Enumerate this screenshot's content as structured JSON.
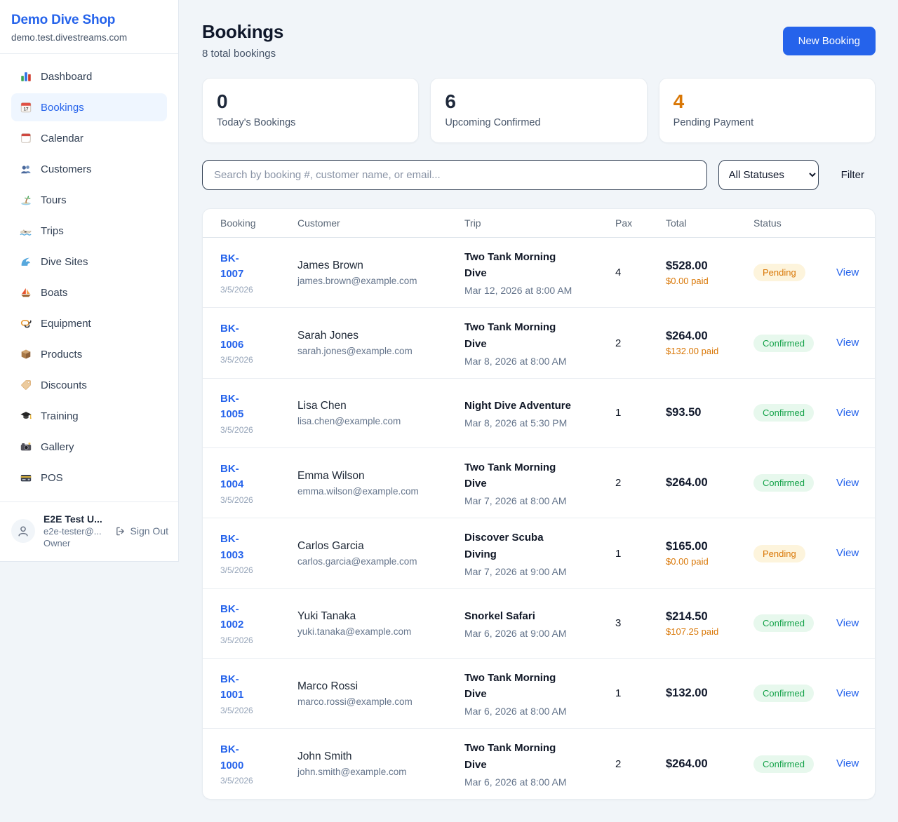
{
  "colors": {
    "accent": "#2563eb",
    "pending_text": "#d97706",
    "pending_bg": "#fdf4dc",
    "confirmed_text": "#16a34a",
    "confirmed_bg": "#e7f8ed"
  },
  "sidebar": {
    "brand": {
      "name": "Demo Dive Shop",
      "domain": "demo.test.divestreams.com"
    },
    "nav": [
      {
        "label": "Dashboard",
        "icon": "bar-chart",
        "active": false
      },
      {
        "label": "Bookings",
        "icon": "calendar-date",
        "active": true
      },
      {
        "label": "Calendar",
        "icon": "calendar-page",
        "active": false
      },
      {
        "label": "Customers",
        "icon": "people",
        "active": false
      },
      {
        "label": "Tours",
        "icon": "island",
        "active": false
      },
      {
        "label": "Trips",
        "icon": "speedboat",
        "active": false
      },
      {
        "label": "Dive Sites",
        "icon": "wave",
        "active": false
      },
      {
        "label": "Boats",
        "icon": "sailboat",
        "active": false
      },
      {
        "label": "Equipment",
        "icon": "dive-mask",
        "active": false
      },
      {
        "label": "Products",
        "icon": "package",
        "active": false
      },
      {
        "label": "Discounts",
        "icon": "tag",
        "active": false
      },
      {
        "label": "Training",
        "icon": "grad-cap",
        "active": false
      },
      {
        "label": "Gallery",
        "icon": "camera",
        "active": false
      },
      {
        "label": "POS",
        "icon": "credit-card",
        "active": false
      }
    ],
    "user": {
      "name": "E2E Test U...",
      "email": "e2e-tester@...",
      "role": "Owner",
      "sign_out": "Sign Out"
    }
  },
  "header": {
    "title": "Bookings",
    "subtitle": "8 total bookings",
    "new_booking_label": "New Booking"
  },
  "stats": [
    {
      "value": "0",
      "label": "Today's Bookings",
      "color": "#1e293b"
    },
    {
      "value": "6",
      "label": "Upcoming Confirmed",
      "color": "#1e293b"
    },
    {
      "value": "4",
      "label": "Pending Payment",
      "color": "#d97706"
    }
  ],
  "filters": {
    "search_placeholder": "Search by booking #, customer name, or email...",
    "status_selected": "All Statuses",
    "filter_label": "Filter"
  },
  "table": {
    "columns": [
      "Booking",
      "Customer",
      "Trip",
      "Pax",
      "Total",
      "Status"
    ],
    "view_label": "View",
    "rows": [
      {
        "id": "BK-1007",
        "date": "3/5/2026",
        "customer": "James Brown",
        "email": "james.brown@example.com",
        "trip": "Two Tank Morning Dive",
        "trip_time": "Mar 12, 2026 at 8:00 AM",
        "pax": "4",
        "total": "$528.00",
        "paid": "$0.00 paid",
        "status": "Pending"
      },
      {
        "id": "BK-1006",
        "date": "3/5/2026",
        "customer": "Sarah Jones",
        "email": "sarah.jones@example.com",
        "trip": "Two Tank Morning Dive",
        "trip_time": "Mar 8, 2026 at 8:00 AM",
        "pax": "2",
        "total": "$264.00",
        "paid": "$132.00 paid",
        "status": "Confirmed"
      },
      {
        "id": "BK-1005",
        "date": "3/5/2026",
        "customer": "Lisa Chen",
        "email": "lisa.chen@example.com",
        "trip": "Night Dive Adventure",
        "trip_time": "Mar 8, 2026 at 5:30 PM",
        "pax": "1",
        "total": "$93.50",
        "paid": null,
        "status": "Confirmed"
      },
      {
        "id": "BK-1004",
        "date": "3/5/2026",
        "customer": "Emma Wilson",
        "email": "emma.wilson@example.com",
        "trip": "Two Tank Morning Dive",
        "trip_time": "Mar 7, 2026 at 8:00 AM",
        "pax": "2",
        "total": "$264.00",
        "paid": null,
        "status": "Confirmed"
      },
      {
        "id": "BK-1003",
        "date": "3/5/2026",
        "customer": "Carlos Garcia",
        "email": "carlos.garcia@example.com",
        "trip": "Discover Scuba Diving",
        "trip_time": "Mar 7, 2026 at 9:00 AM",
        "pax": "1",
        "total": "$165.00",
        "paid": "$0.00 paid",
        "status": "Pending"
      },
      {
        "id": "BK-1002",
        "date": "3/5/2026",
        "customer": "Yuki Tanaka",
        "email": "yuki.tanaka@example.com",
        "trip": "Snorkel Safari",
        "trip_time": "Mar 6, 2026 at 9:00 AM",
        "pax": "3",
        "total": "$214.50",
        "paid": "$107.25 paid",
        "status": "Confirmed"
      },
      {
        "id": "BK-1001",
        "date": "3/5/2026",
        "customer": "Marco Rossi",
        "email": "marco.rossi@example.com",
        "trip": "Two Tank Morning Dive",
        "trip_time": "Mar 6, 2026 at 8:00 AM",
        "pax": "1",
        "total": "$132.00",
        "paid": null,
        "status": "Confirmed"
      },
      {
        "id": "BK-1000",
        "date": "3/5/2026",
        "customer": "John Smith",
        "email": "john.smith@example.com",
        "trip": "Two Tank Morning Dive",
        "trip_time": "Mar 6, 2026 at 8:00 AM",
        "pax": "2",
        "total": "$264.00",
        "paid": null,
        "status": "Confirmed"
      }
    ]
  }
}
